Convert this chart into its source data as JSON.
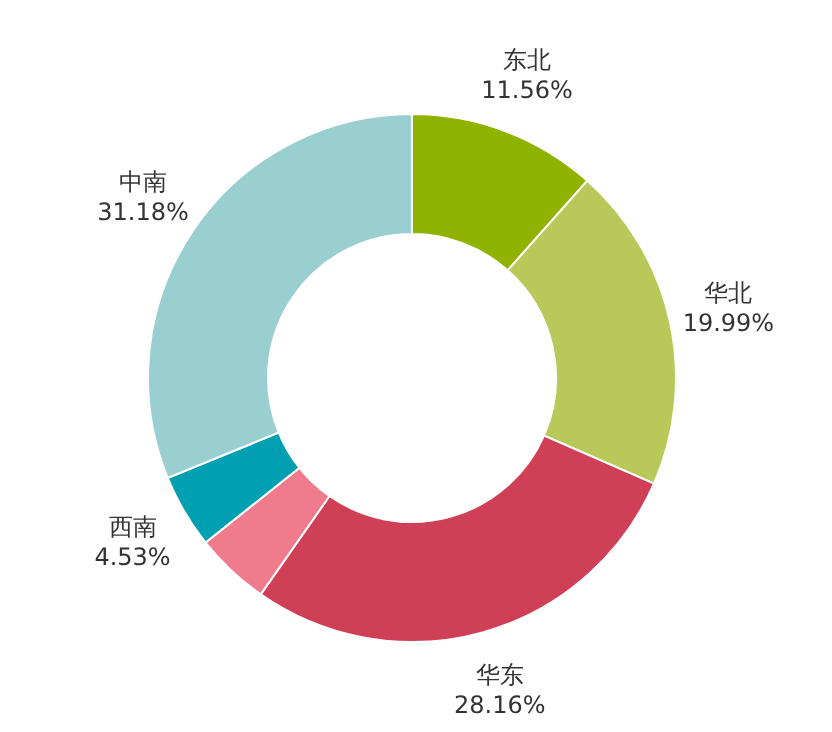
{
  "chart_data": {
    "type": "donut",
    "categories": [
      "东北",
      "华北",
      "华东",
      null,
      "西南",
      "中南"
    ],
    "values": [
      11.56,
      19.99,
      28.16,
      4.58,
      4.53,
      31.18
    ],
    "value_labels": [
      "11.56%",
      "19.99%",
      "28.16%",
      null,
      "4.53%",
      "31.18%"
    ],
    "colors": [
      "#8fb300",
      "#b8c95a",
      "#cf3f56",
      "#f07b8c",
      "#00a0b2",
      "#99cfd1"
    ],
    "legend": false
  }
}
